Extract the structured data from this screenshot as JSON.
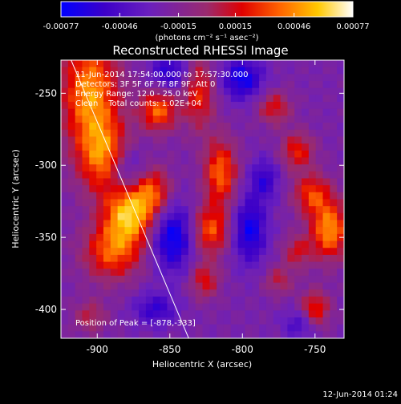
{
  "chart_data": {
    "type": "heatmap",
    "title": "Reconstructed RHESSI Image",
    "xlabel": "Heliocentric X (arcsec)",
    "ylabel": "Heliocentric Y (arcsec)",
    "xlim": [
      -925,
      -730
    ],
    "ylim": [
      -420,
      -227
    ],
    "x_ticks": [
      -900,
      -850,
      -800,
      -750
    ],
    "y_ticks": [
      -250,
      -300,
      -350,
      -400
    ],
    "x_tick_labels": [
      "-900",
      "-850",
      "-800",
      "-750"
    ],
    "y_tick_labels": [
      "-250",
      "-300",
      "-350",
      "-400"
    ],
    "colorbar": {
      "range": [
        -0.00077,
        0.00077
      ],
      "ticks": [
        -0.00077,
        -0.00046,
        -0.00015,
        0.00015,
        0.00046,
        0.00077
      ],
      "tick_labels": [
        "-0.00077",
        "-0.00046",
        "-0.00015",
        "0.00015",
        "0.00046",
        "0.00077"
      ],
      "unit_label": "(photons cm⁻² s⁻¹ asec⁻²)"
    },
    "annotations": [
      "11-Jun-2014 17:54:00.000 to 17:57:30.000",
      "Detectors: 3F 5F 6F 7F 8F 9F, Att 0",
      "Energy Range: 12.0 - 25.0 keV",
      "Clean    Total counts: 1.02E+04"
    ],
    "peak_label": "Position of Peak = [-878,-333]",
    "peak": [
      -878,
      -333
    ],
    "limb_line": [
      [
        -918,
        -227
      ],
      [
        -837,
        -420
      ]
    ],
    "sources": [
      {
        "x": -905,
        "y": -250,
        "amp": 0.0007,
        "sx": 14,
        "sy": 28
      },
      {
        "x": -895,
        "y": -295,
        "amp": 0.0006,
        "sx": 12,
        "sy": 18
      },
      {
        "x": -878,
        "y": -333,
        "amp": 0.00077,
        "sx": 12,
        "sy": 15
      },
      {
        "x": -890,
        "y": -360,
        "amp": 0.00055,
        "sx": 14,
        "sy": 14
      },
      {
        "x": -862,
        "y": -318,
        "amp": 0.0005,
        "sx": 9,
        "sy": 12
      },
      {
        "x": -858,
        "y": -262,
        "amp": 0.0006,
        "sx": 9,
        "sy": 10
      },
      {
        "x": -905,
        "y": -405,
        "amp": 0.0003,
        "sx": 8,
        "sy": 8
      },
      {
        "x": -830,
        "y": -250,
        "amp": 0.00045,
        "sx": 8,
        "sy": 18
      },
      {
        "x": -815,
        "y": -305,
        "amp": 0.0006,
        "sx": 8,
        "sy": 16
      },
      {
        "x": -822,
        "y": -345,
        "amp": 0.00055,
        "sx": 9,
        "sy": 12
      },
      {
        "x": -826,
        "y": -380,
        "amp": 0.0004,
        "sx": 7,
        "sy": 9
      },
      {
        "x": -778,
        "y": -260,
        "amp": 0.0004,
        "sx": 8,
        "sy": 8
      },
      {
        "x": -762,
        "y": -290,
        "amp": 0.00045,
        "sx": 8,
        "sy": 9
      },
      {
        "x": -752,
        "y": -320,
        "amp": 0.0005,
        "sx": 9,
        "sy": 10
      },
      {
        "x": -740,
        "y": -345,
        "amp": 0.0007,
        "sx": 9,
        "sy": 14
      },
      {
        "x": -762,
        "y": -360,
        "amp": 0.00035,
        "sx": 7,
        "sy": 8
      },
      {
        "x": -750,
        "y": -400,
        "amp": 0.0005,
        "sx": 7,
        "sy": 9
      },
      {
        "x": -775,
        "y": -380,
        "amp": 0.0003,
        "sx": 7,
        "sy": 7
      },
      {
        "x": -880,
        "y": -305,
        "amp": -0.0004,
        "sx": 10,
        "sy": 12
      },
      {
        "x": -848,
        "y": -350,
        "amp": -0.00055,
        "sx": 10,
        "sy": 16
      },
      {
        "x": -850,
        "y": -235,
        "amp": -0.0004,
        "sx": 9,
        "sy": 9
      },
      {
        "x": -800,
        "y": -240,
        "amp": -0.0005,
        "sx": 10,
        "sy": 10
      },
      {
        "x": -795,
        "y": -345,
        "amp": -0.0005,
        "sx": 8,
        "sy": 16
      },
      {
        "x": -760,
        "y": -410,
        "amp": -0.0003,
        "sx": 8,
        "sy": 7
      },
      {
        "x": -785,
        "y": -310,
        "amp": -0.00035,
        "sx": 7,
        "sy": 10
      },
      {
        "x": -860,
        "y": -400,
        "amp": -0.00035,
        "sx": 10,
        "sy": 8
      }
    ]
  },
  "footer": {
    "date_stamp": "12-Jun-2014 01:24"
  }
}
